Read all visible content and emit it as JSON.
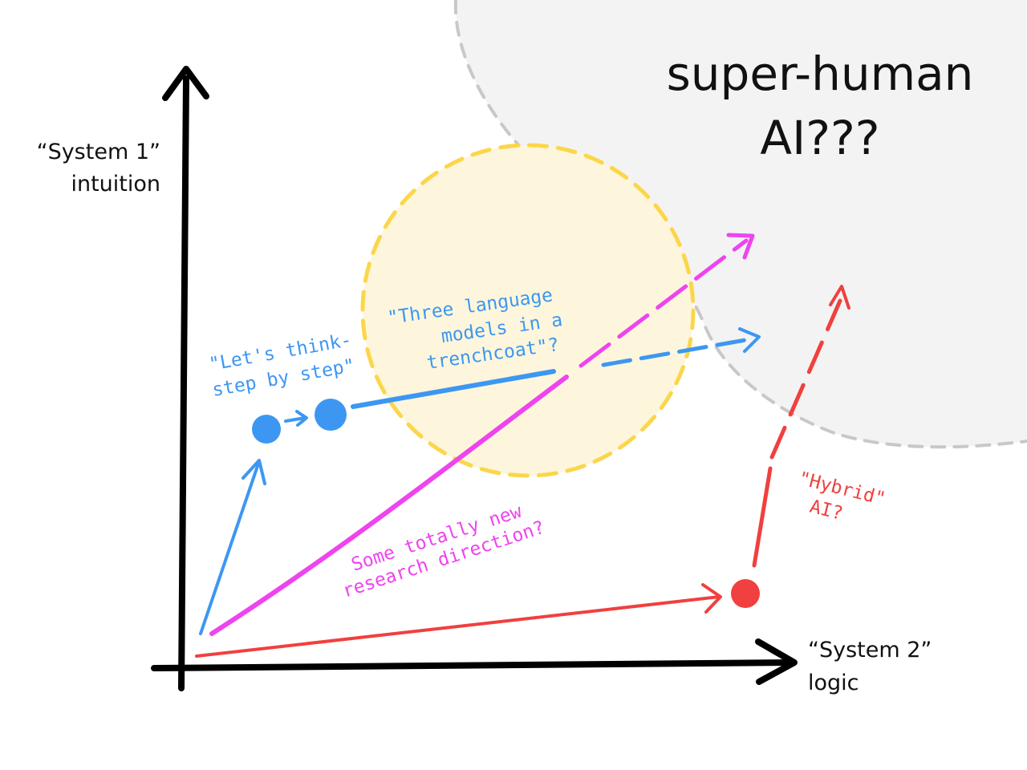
{
  "regions": {
    "superhuman": {
      "line1": "super-human",
      "line2": "AI???",
      "fill": "#f3f3f3",
      "stroke": "#c8c8c8"
    },
    "trenchcoat": {
      "fill": "#fdf6dc",
      "stroke": "#fcd64a"
    }
  },
  "axes": {
    "y_label_line1": "“System 1”",
    "y_label_line2": "intuition",
    "x_label_line1": "“System 2”",
    "x_label_line2": "logic",
    "color": "#000000"
  },
  "paths": {
    "blue": {
      "color": "#3d97f2",
      "label_cot_line1": "\"Let's think-",
      "label_cot_line2": "step by step\"",
      "label_trench_line1": "\"Three language",
      "label_trench_line2": "models in a",
      "label_trench_line3": "trenchcoat\"?"
    },
    "magenta": {
      "color": "#ee44ee",
      "label_line1": "Some totally new",
      "label_line2": "research direction?"
    },
    "red": {
      "color": "#f0403f",
      "label_line1": "\"Hybrid\"",
      "label_line2": "AI?"
    }
  }
}
